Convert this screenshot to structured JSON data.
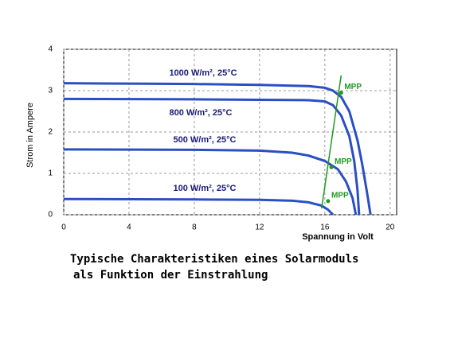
{
  "chart_data": {
    "type": "line",
    "title_lines": [
      "Typische Charakteristiken eines Solarmoduls",
      "als Funktion der Einstrahlung"
    ],
    "x_label": "Spannung in Volt",
    "y_label": "Strom in Ampere",
    "xlim": [
      0,
      20.4
    ],
    "ylim": [
      0,
      4
    ],
    "xticks": [
      0,
      4,
      8,
      12,
      16,
      20
    ],
    "yticks": [
      0,
      1,
      2,
      3,
      4
    ],
    "grid": true,
    "series": [
      {
        "name": "1000 W/m², 25°C",
        "color": "#2a4fc4",
        "x": [
          0,
          4,
          8,
          12,
          15,
          16,
          16.5,
          17,
          17.5,
          18,
          18.3,
          18.6,
          18.8
        ],
        "values": [
          3.18,
          3.17,
          3.16,
          3.14,
          3.11,
          3.07,
          3.0,
          2.85,
          2.5,
          1.8,
          1.2,
          0.5,
          0
        ]
      },
      {
        "name": "800 W/m², 25°C",
        "color": "#2a4fc4",
        "x": [
          0,
          8,
          12,
          15,
          16,
          16.5,
          17,
          17.5,
          17.8,
          18,
          18.1
        ],
        "values": [
          2.8,
          2.79,
          2.78,
          2.77,
          2.74,
          2.65,
          2.4,
          1.9,
          1.3,
          0.6,
          0
        ]
      },
      {
        "name": "500 W/m², 25°C",
        "color": "#2a4fc4",
        "x": [
          0,
          8,
          12,
          14,
          15,
          16,
          16.8,
          17.3,
          17.7,
          17.9
        ],
        "values": [
          1.58,
          1.57,
          1.55,
          1.5,
          1.43,
          1.3,
          1.1,
          0.8,
          0.4,
          0
        ]
      },
      {
        "name": "100 W/m², 25°C",
        "color": "#2a4fc4",
        "x": [
          0,
          8,
          12,
          14,
          15,
          15.8,
          16.2,
          16.5
        ],
        "values": [
          0.38,
          0.37,
          0.36,
          0.34,
          0.3,
          0.22,
          0.12,
          0
        ]
      }
    ],
    "mpp_line": {
      "color": "#1f9a1f",
      "x": [
        15.8,
        17.0
      ],
      "values": [
        0.15,
        3.37
      ]
    },
    "mpp_points": {
      "x": [
        16.2,
        16.4,
        17.0
      ],
      "values": [
        0.33,
        1.15,
        2.95
      ],
      "labels": [
        "MPP",
        "MPP",
        "MPP"
      ]
    }
  }
}
